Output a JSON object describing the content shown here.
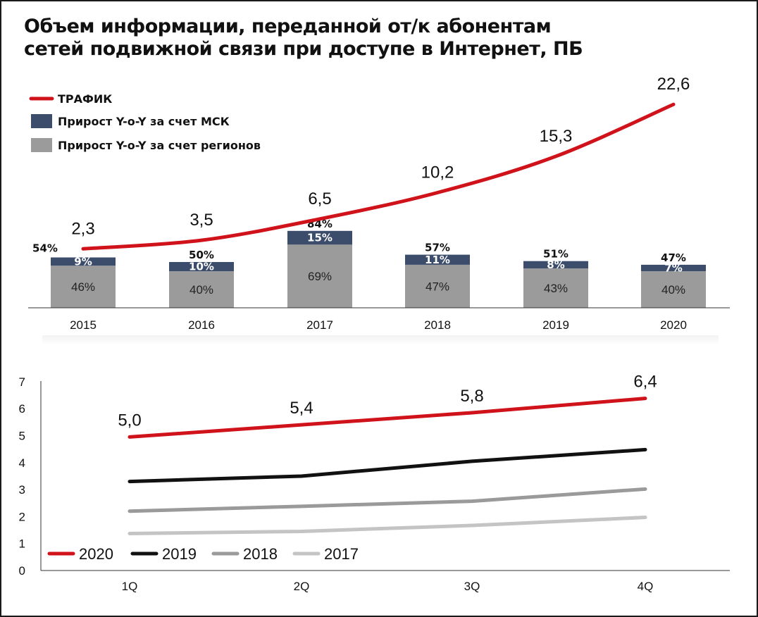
{
  "title_line1": "Объем информации, переданной от/к абонентам",
  "title_line2": "сетей подвижной связи при доступе в Интернет, ПБ",
  "colors": {
    "traffic": "#d0121b",
    "msk": "#3b4d6b",
    "regions": "#9b9b9b",
    "s2020": "#d0121b",
    "s2019": "#111111",
    "s2018": "#9a9a9a",
    "s2017": "#c4c4c4"
  },
  "chart_data": [
    {
      "type": "bar",
      "categories": [
        "2015",
        "2016",
        "2017",
        "2018",
        "2019",
        "2020"
      ],
      "series": [
        {
          "name": "ТРАФИК",
          "kind": "line",
          "values": [
            2.3,
            3.5,
            6.5,
            10.2,
            15.3,
            22.6
          ],
          "labels": [
            "2,3",
            "3,5",
            "6,5",
            "10,2",
            "15,3",
            "22,6"
          ]
        },
        {
          "name": "Прирост Y-o-Y за счет МСК",
          "kind": "bar-stacked-top",
          "values": [
            9,
            10,
            15,
            11,
            8,
            7
          ],
          "labels": [
            "9%",
            "10%",
            "15%",
            "11%",
            "8%",
            "7%"
          ]
        },
        {
          "name": "Прирост Y-o-Y за счет регионов",
          "kind": "bar-stacked-bottom",
          "values": [
            46,
            40,
            69,
            47,
            43,
            40
          ],
          "labels": [
            "46%",
            "40%",
            "69%",
            "47%",
            "43%",
            "40%"
          ]
        }
      ],
      "totals": [
        "54%",
        "50%",
        "84%",
        "57%",
        "51%",
        "47%"
      ],
      "legend": "top-left"
    },
    {
      "type": "line",
      "categories": [
        "1Q",
        "2Q",
        "3Q",
        "4Q"
      ],
      "ylim": [
        0,
        7
      ],
      "yticks": [
        "0",
        "1",
        "2",
        "3",
        "4",
        "5",
        "6",
        "7"
      ],
      "series": [
        {
          "name": "2020",
          "values": [
            4.95,
            5.4,
            5.85,
            6.38
          ],
          "labels": [
            "5,0",
            "5,4",
            "5,8",
            "6,4"
          ]
        },
        {
          "name": "2019",
          "values": [
            3.3,
            3.5,
            4.05,
            4.48
          ]
        },
        {
          "name": "2018",
          "values": [
            2.2,
            2.38,
            2.57,
            3.02
          ]
        },
        {
          "name": "2017",
          "values": [
            1.37,
            1.45,
            1.67,
            1.97
          ]
        }
      ],
      "legend": "bottom-left"
    }
  ]
}
